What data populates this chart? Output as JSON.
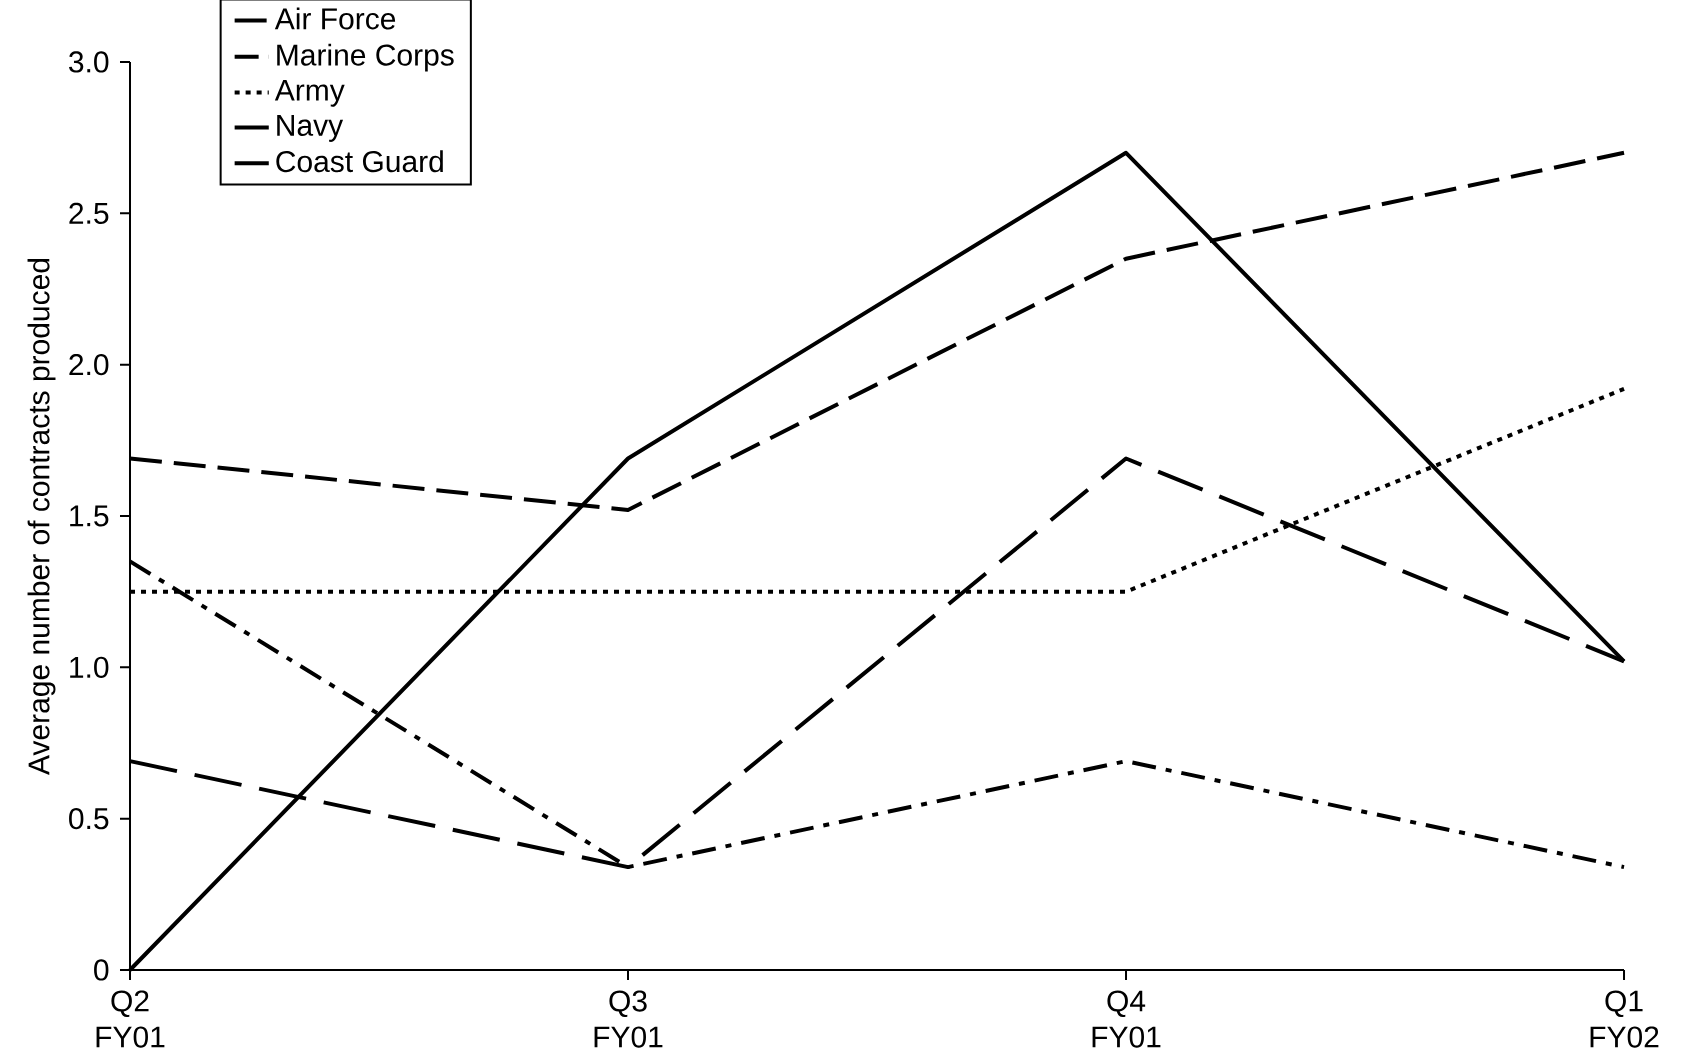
{
  "chart_data": {
    "type": "line",
    "ylabel": "Average number of contracts produced",
    "categories": [
      "Q2 FY01",
      "Q3 FY01",
      "Q4 FY01",
      "Q1 FY02"
    ],
    "ylim": [
      0,
      3
    ],
    "yticks": [
      0,
      {
        "value": 0.5,
        "label": "0.5"
      },
      {
        "value": 1,
        "label": "1.0"
      },
      {
        "value": 1.5,
        "label": "1.5"
      },
      {
        "value": 2,
        "label": "2.0"
      },
      {
        "value": 2.5,
        "label": "2.5"
      },
      {
        "value": 3,
        "label": "3.0"
      }
    ],
    "grid": false,
    "legend": "top left",
    "marker": "none",
    "series": [
      {
        "name": "Air Force",
        "color": "#000000",
        "line_style": "dashed",
        "values": [
          1.69,
          1.52,
          2.35,
          2.7
        ]
      },
      {
        "name": "Marine Corps",
        "color": "#000000",
        "line_style": "dashdot",
        "values": [
          1.35,
          0.34,
          0.69,
          0.34
        ]
      },
      {
        "name": "Army",
        "color": "#000000",
        "line_style": "dotted",
        "values": [
          1.25,
          1.25,
          1.25,
          1.92
        ]
      },
      {
        "name": "Navy",
        "color": "#000000",
        "line_style": "longdashed",
        "values": [
          0.69,
          0.34,
          1.69,
          1.02
        ]
      },
      {
        "name": "Coast Guard",
        "color": "#000000",
        "line_style": "solid",
        "values": [
          0,
          1.69,
          2.7,
          1.02
        ]
      }
    ]
  }
}
